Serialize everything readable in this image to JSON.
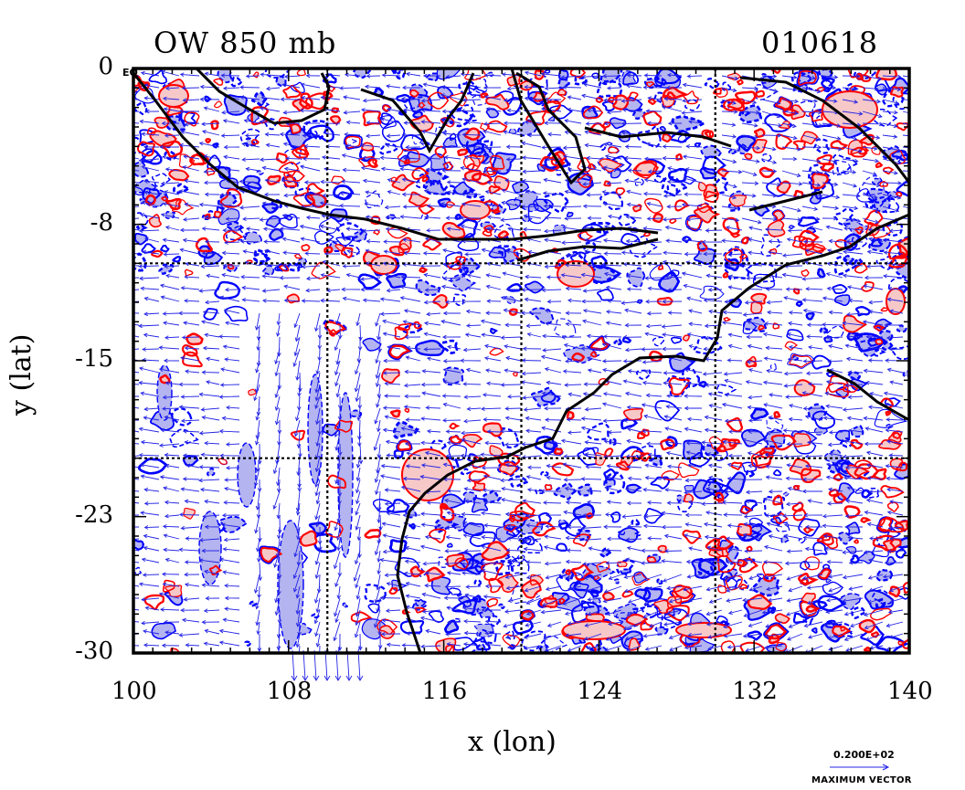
{
  "chart_data": {
    "type": "contour",
    "title": "OW 850 mb",
    "date_label": "010618",
    "xlabel": "x (lon)",
    "ylabel": "y (lat)",
    "xlim": [
      100,
      140
    ],
    "ylim": [
      -30,
      0
    ],
    "x_ticks": [
      "100",
      "108",
      "116",
      "124",
      "132",
      "140"
    ],
    "y_ticks": [
      "0",
      "-8",
      "-15",
      "-23",
      "-30"
    ],
    "y_tick_values": [
      0,
      -8,
      -15,
      -23,
      -30
    ],
    "x_tick_values": [
      100,
      108,
      116,
      124,
      132,
      140
    ],
    "equator_label": "EQ",
    "grid_lon": [
      110,
      120,
      130
    ],
    "grid_lat": [
      -10,
      -20
    ],
    "vector_reference": {
      "value_label": "0.200E+02",
      "caption": "MAXIMUM VECTOR"
    },
    "colors": {
      "positive_contour": "#ff0000",
      "positive_fill": "#f7c8c8",
      "negative_contour": "#0000ff",
      "negative_fill": "#b4b4f0",
      "vectors": "#2323e6",
      "coastline": "#000000"
    }
  }
}
